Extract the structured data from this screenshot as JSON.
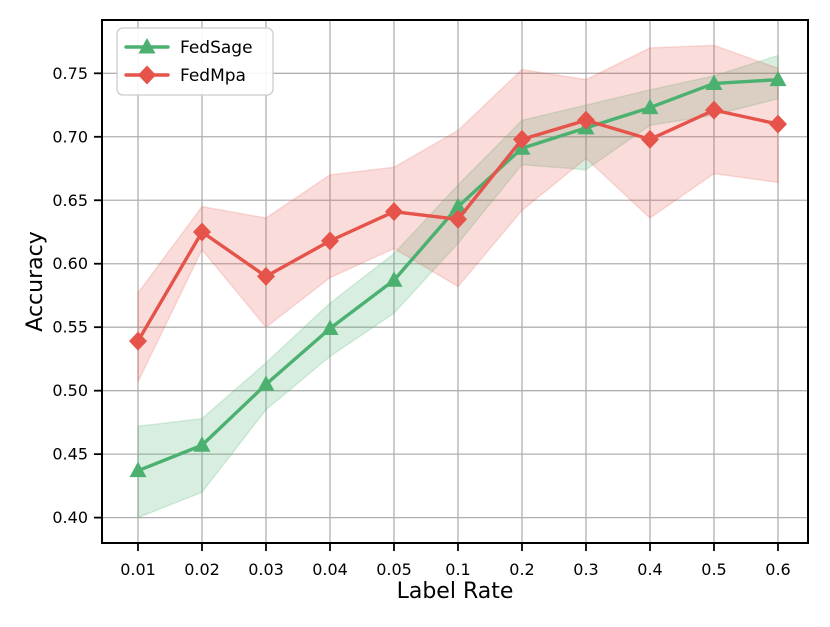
{
  "chart_data": {
    "type": "line",
    "title": "",
    "xlabel": "Label Rate",
    "ylabel": "Accuracy",
    "categories": [
      "0.01",
      "0.02",
      "0.03",
      "0.04",
      "0.05",
      "0.1",
      "0.2",
      "0.3",
      "0.4",
      "0.5",
      "0.6"
    ],
    "ylim": [
      0.38,
      0.792
    ],
    "yticks": [
      0.4,
      0.45,
      0.5,
      0.55,
      0.6,
      0.65,
      0.7,
      0.75
    ],
    "ytick_labels": [
      "0.40",
      "0.45",
      "0.50",
      "0.55",
      "0.60",
      "0.65",
      "0.70",
      "0.75"
    ],
    "grid": true,
    "grid_color": "#b0b0b0",
    "background_color": "#ffffff",
    "legend_position": "upper left",
    "series": [
      {
        "name": "FedSage",
        "color": "#4cb170",
        "marker": "triangle",
        "values": [
          0.437,
          0.457,
          0.505,
          0.549,
          0.587,
          0.645,
          0.691,
          0.707,
          0.723,
          0.742,
          0.745
        ],
        "band_lower": [
          0.4,
          0.42,
          0.485,
          0.527,
          0.561,
          0.616,
          0.678,
          0.674,
          0.709,
          0.717,
          0.73
        ],
        "band_upper": [
          0.472,
          0.478,
          0.522,
          0.569,
          0.608,
          0.662,
          0.713,
          0.725,
          0.737,
          0.748,
          0.764
        ],
        "band_opacity": 0.22
      },
      {
        "name": "FedMpa",
        "color": "#e5534a",
        "marker": "diamond",
        "values": [
          0.539,
          0.625,
          0.59,
          0.618,
          0.641,
          0.635,
          0.698,
          0.713,
          0.698,
          0.721,
          0.71
        ],
        "band_lower": [
          0.507,
          0.611,
          0.55,
          0.589,
          0.612,
          0.582,
          0.642,
          0.683,
          0.636,
          0.671,
          0.664
        ],
        "band_upper": [
          0.577,
          0.645,
          0.636,
          0.67,
          0.676,
          0.705,
          0.753,
          0.745,
          0.77,
          0.772,
          0.754
        ],
        "band_opacity": 0.2
      }
    ]
  }
}
